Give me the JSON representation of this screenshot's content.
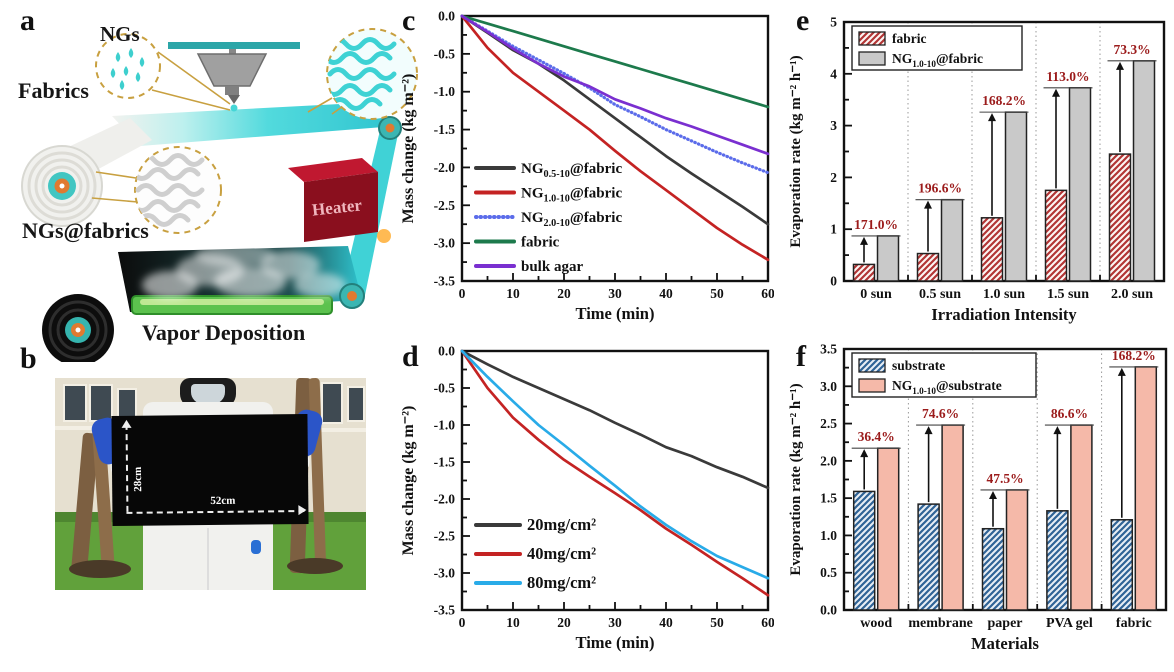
{
  "figure": {
    "panel_labels": {
      "a": "a",
      "b": "b",
      "c": "c",
      "d": "d",
      "e": "e",
      "f": "f"
    },
    "panel_a": {
      "labels": {
        "ngs": "NGs",
        "fabrics": "Fabrics",
        "ngs_fabrics": "NGs@fabrics",
        "heater": "Heater",
        "vapor": "Vapor Deposition"
      }
    },
    "panel_b": {
      "height_label": "28cm",
      "width_label": "52cm"
    }
  },
  "chart_data": [
    {
      "id": "c",
      "type": "line",
      "xlabel": "Time (min)",
      "ylabel": "Mass change (kg m⁻²)",
      "xlim": [
        0,
        60
      ],
      "ylim": [
        -3.5,
        0
      ],
      "xticks": [
        0,
        10,
        20,
        30,
        40,
        50,
        60
      ],
      "yticks": [
        0,
        -0.5,
        -1,
        -1.5,
        -2,
        -2.5,
        -3,
        -3.5
      ],
      "ytick_labels": [
        "0.0",
        "-0.5",
        "-1.0",
        "-1.5",
        "-2.0",
        "-2.5",
        "-3.0",
        "-3.5"
      ],
      "legend_position": "lower-left",
      "grid": false,
      "x": [
        0,
        5,
        10,
        15,
        20,
        25,
        30,
        35,
        40,
        45,
        50,
        55,
        60
      ],
      "series": [
        {
          "name": {
            "pre": "NG",
            "sub": "0.5-10",
            "post": "@fabric"
          },
          "color": "#3a3a3a",
          "style": "solid",
          "y": [
            0,
            -0.22,
            -0.45,
            -0.63,
            -0.85,
            -1.1,
            -1.35,
            -1.6,
            -1.85,
            -2.08,
            -2.3,
            -2.52,
            -2.75
          ]
        },
        {
          "name": {
            "pre": "NG",
            "sub": "1.0-10",
            "post": "@fabric"
          },
          "color": "#c42323",
          "style": "solid",
          "y": [
            0,
            -0.42,
            -0.75,
            -1.0,
            -1.25,
            -1.5,
            -1.78,
            -2.05,
            -2.3,
            -2.55,
            -2.8,
            -3.02,
            -3.22
          ]
        },
        {
          "name": {
            "pre": "NG",
            "sub": "2.0-10",
            "post": "@fabric"
          },
          "color": "#5b6cea",
          "style": "dotted",
          "y": [
            0,
            -0.2,
            -0.4,
            -0.58,
            -0.76,
            -0.95,
            -1.17,
            -1.33,
            -1.5,
            -1.65,
            -1.8,
            -1.94,
            -2.07
          ]
        },
        {
          "name": {
            "pre": "fabric"
          },
          "color": "#1d7a4c",
          "style": "solid",
          "y": [
            0,
            -0.1,
            -0.2,
            -0.3,
            -0.4,
            -0.5,
            -0.6,
            -0.7,
            -0.8,
            -0.9,
            -1.0,
            -1.1,
            -1.2
          ]
        },
        {
          "name": {
            "pre": "bulk agar"
          },
          "color": "#7a2fd0",
          "style": "solid",
          "y": [
            0,
            -0.21,
            -0.43,
            -0.63,
            -0.8,
            -0.93,
            -1.1,
            -1.22,
            -1.35,
            -1.46,
            -1.58,
            -1.7,
            -1.82
          ]
        }
      ]
    },
    {
      "id": "d",
      "type": "line",
      "xlabel": "Time (min)",
      "ylabel": "Mass change (kg m⁻²)",
      "xlim": [
        0,
        60
      ],
      "ylim": [
        -3.5,
        0
      ],
      "xticks": [
        0,
        10,
        20,
        30,
        40,
        50,
        60
      ],
      "yticks": [
        0,
        -0.5,
        -1,
        -1.5,
        -2,
        -2.5,
        -3,
        -3.5
      ],
      "ytick_labels": [
        "0.0",
        "-0.5",
        "-1.0",
        "-1.5",
        "-2.0",
        "-2.5",
        "-3.0",
        "-3.5"
      ],
      "legend_position": "lower-left",
      "grid": false,
      "x": [
        0,
        5,
        10,
        15,
        20,
        25,
        30,
        35,
        40,
        45,
        50,
        55,
        60
      ],
      "series": [
        {
          "name": {
            "pre": "20mg/cm²"
          },
          "color": "#3a3a3a",
          "style": "solid",
          "y": [
            0,
            -0.18,
            -0.35,
            -0.5,
            -0.65,
            -0.8,
            -0.97,
            -1.13,
            -1.3,
            -1.42,
            -1.57,
            -1.7,
            -1.85
          ]
        },
        {
          "name": {
            "pre": "40mg/cm²"
          },
          "color": "#c42323",
          "style": "solid",
          "y": [
            0,
            -0.5,
            -0.9,
            -1.2,
            -1.47,
            -1.7,
            -1.92,
            -2.15,
            -2.4,
            -2.62,
            -2.85,
            -3.07,
            -3.3
          ]
        },
        {
          "name": {
            "pre": "80mg/cm²"
          },
          "color": "#29abe8",
          "style": "solid",
          "y": [
            0,
            -0.35,
            -0.68,
            -1.0,
            -1.27,
            -1.55,
            -1.82,
            -2.1,
            -2.35,
            -2.57,
            -2.77,
            -2.92,
            -3.07
          ]
        }
      ]
    },
    {
      "id": "e",
      "type": "bar",
      "xlabel": "Irradiation Intensity",
      "ylabel": "Evaporation rate (kg m⁻² h⁻¹)",
      "ylim": [
        0,
        5
      ],
      "yticks": [
        0,
        1,
        2,
        3,
        4,
        5
      ],
      "ytick_labels": [
        "0",
        "1",
        "2",
        "3",
        "4",
        "5"
      ],
      "categories": [
        "0 sun",
        "0.5 sun",
        "1.0 sun",
        "1.5 sun",
        "2.0 sun"
      ],
      "legend_position": "upper-left",
      "grid": "dotted-vertical",
      "series": [
        {
          "name": {
            "pre": "fabric"
          },
          "fill": "hatch",
          "hatch_color": "#b23535",
          "bg": "#fdf6f4",
          "edge": "#222",
          "values": [
            0.32,
            0.53,
            1.22,
            1.75,
            2.45
          ]
        },
        {
          "name": {
            "pre": "NG",
            "sub": "1.0-10",
            "post": "@fabric"
          },
          "fill": "solid",
          "bg": "#c9c9c9",
          "edge": "#222",
          "values": [
            0.87,
            1.57,
            3.26,
            3.73,
            4.25
          ]
        }
      ],
      "annotations": [
        "171.0%",
        "196.6%",
        "168.2%",
        "113.0%",
        "73.3%"
      ],
      "annotation_color": "#9b1b1b"
    },
    {
      "id": "f",
      "type": "bar",
      "xlabel": "Materials",
      "ylabel": "Evaporation rate (kg m⁻² h⁻¹)",
      "ylim": [
        0,
        3.5
      ],
      "yticks": [
        0,
        0.5,
        1,
        1.5,
        2,
        2.5,
        3,
        3.5
      ],
      "ytick_labels": [
        "0.0",
        "0.5",
        "1.0",
        "1.5",
        "2.0",
        "2.5",
        "3.0",
        "3.5"
      ],
      "categories": [
        "wood",
        "membrane",
        "paper",
        "PVA gel",
        "fabric"
      ],
      "legend_position": "upper-left",
      "grid": "dotted-vertical",
      "series": [
        {
          "name": {
            "pre": "substrate"
          },
          "fill": "hatch",
          "hatch_color": "#2f6396",
          "bg": "#e8eef5",
          "edge": "#222",
          "values": [
            1.59,
            1.42,
            1.09,
            1.33,
            1.21
          ]
        },
        {
          "name": {
            "pre": "NG",
            "sub": "1.0-10",
            "post": "@substrate"
          },
          "fill": "solid",
          "bg": "#f5b9a9",
          "edge": "#222",
          "values": [
            2.17,
            2.48,
            1.61,
            2.48,
            3.26
          ]
        }
      ],
      "annotations": [
        "36.4%",
        "74.6%",
        "47.5%",
        "86.6%",
        "168.2%"
      ],
      "annotation_color": "#9b1b1b"
    }
  ]
}
